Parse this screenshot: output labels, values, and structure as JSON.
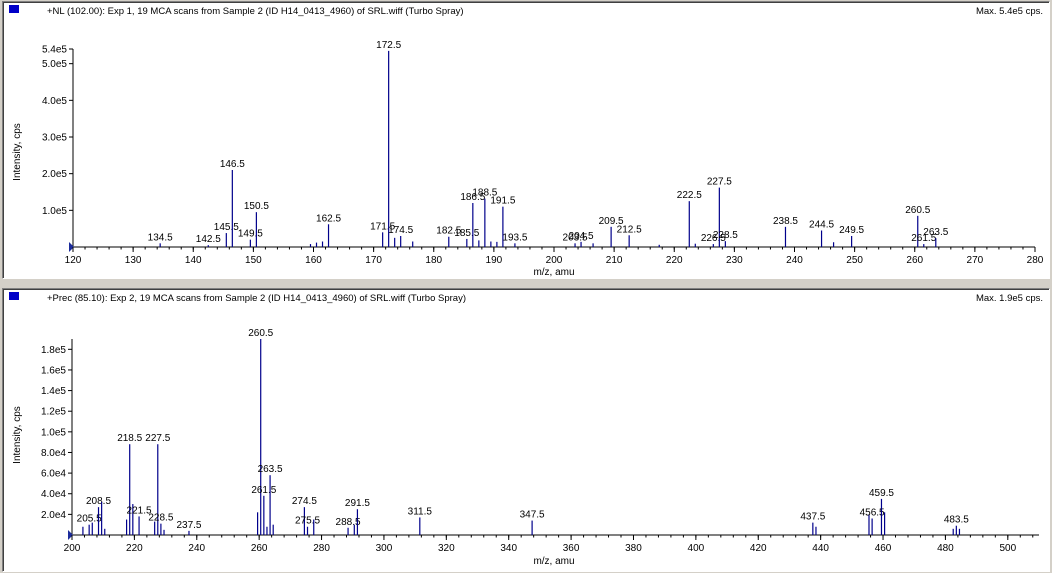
{
  "colors": {
    "peak": "#00008b",
    "marker": "#0000c8",
    "origin_marker": "#1c2c9c"
  },
  "panes": [
    {
      "header": {
        "title": "+NL (102.00): Exp 1, 19 MCA scans from Sample 2 (ID H14_0413_4960) of SRL.wiff (Turbo Spray)",
        "max": "Max. 5.4e5 cps."
      }
    },
    {
      "header": {
        "title": "+Prec (85.10): Exp 2, 19 MCA scans from Sample 2 (ID H14_0413_4960) of SRL.wiff (Turbo Spray)",
        "max": "Max. 1.9e5 cps."
      }
    }
  ],
  "chart_data": [
    {
      "type": "bar",
      "xlabel": "m/z, amu",
      "ylabel": "Intensity, cps",
      "xlim": [
        120,
        280
      ],
      "ylim": [
        0,
        540000
      ],
      "x_ticks": [
        "120",
        "130",
        "140",
        "150",
        "160",
        "170",
        "180",
        "190",
        "200",
        "210",
        "220",
        "230",
        "240",
        "250",
        "260",
        "270",
        "280"
      ],
      "y_ticks": [
        {
          "value": 100000,
          "label": "1.0e5"
        },
        {
          "value": 200000,
          "label": "2.0e5"
        },
        {
          "value": 300000,
          "label": "3.0e5"
        },
        {
          "value": 400000,
          "label": "4.0e5"
        },
        {
          "value": 500000,
          "label": "5.0e5"
        },
        {
          "value": 540000,
          "label": "5.4e5"
        }
      ],
      "peaks": [
        {
          "mz": 134.5,
          "i": 10000,
          "label": "134.5"
        },
        {
          "mz": 142.5,
          "i": 5000,
          "label": "142.5"
        },
        {
          "mz": 145.5,
          "i": 38000,
          "label": "145.5"
        },
        {
          "mz": 146.5,
          "i": 210000,
          "label": "146.5"
        },
        {
          "mz": 149.5,
          "i": 20000,
          "label": "149.5"
        },
        {
          "mz": 150.5,
          "i": 95000,
          "label": "150.5"
        },
        {
          "mz": 159.5,
          "i": 8000
        },
        {
          "mz": 160.5,
          "i": 12000
        },
        {
          "mz": 161.5,
          "i": 15000
        },
        {
          "mz": 162.5,
          "i": 62000,
          "label": "162.5"
        },
        {
          "mz": 171.5,
          "i": 40000,
          "label": "171.5"
        },
        {
          "mz": 172.5,
          "i": 535000,
          "label": "172.5"
        },
        {
          "mz": 173.5,
          "i": 25000
        },
        {
          "mz": 174.5,
          "i": 30000,
          "label": "174.5"
        },
        {
          "mz": 176.5,
          "i": 15000
        },
        {
          "mz": 182.5,
          "i": 28000,
          "label": "182.5"
        },
        {
          "mz": 185.5,
          "i": 22000,
          "label": "185.5"
        },
        {
          "mz": 186.5,
          "i": 120000,
          "label": "186.5"
        },
        {
          "mz": 187.5,
          "i": 18000
        },
        {
          "mz": 188.5,
          "i": 132000,
          "label": "188.5"
        },
        {
          "mz": 189.5,
          "i": 15000
        },
        {
          "mz": 190.5,
          "i": 14000
        },
        {
          "mz": 191.5,
          "i": 110000,
          "label": "191.5"
        },
        {
          "mz": 193.5,
          "i": 10000,
          "label": "193.5"
        },
        {
          "mz": 203.5,
          "i": 10000,
          "label": "203.5"
        },
        {
          "mz": 204.5,
          "i": 14000,
          "label": "204.5"
        },
        {
          "mz": 206.5,
          "i": 10000
        },
        {
          "mz": 209.5,
          "i": 55000,
          "label": "209.5"
        },
        {
          "mz": 212.5,
          "i": 32000,
          "label": "212.5"
        },
        {
          "mz": 217.5,
          "i": 6000
        },
        {
          "mz": 222.5,
          "i": 125000,
          "label": "222.5"
        },
        {
          "mz": 223.5,
          "i": 9000
        },
        {
          "mz": 226.5,
          "i": 8000,
          "label": "226.5"
        },
        {
          "mz": 227.5,
          "i": 162000,
          "label": "227.5"
        },
        {
          "mz": 228.5,
          "i": 16000,
          "label": "228.5"
        },
        {
          "mz": 238.5,
          "i": 55000,
          "label": "238.5"
        },
        {
          "mz": 244.5,
          "i": 45000,
          "label": "244.5"
        },
        {
          "mz": 246.5,
          "i": 13000
        },
        {
          "mz": 249.5,
          "i": 30000,
          "label": "249.5"
        },
        {
          "mz": 260.5,
          "i": 85000,
          "label": "260.5"
        },
        {
          "mz": 261.5,
          "i": 8000,
          "label": "261.5"
        },
        {
          "mz": 263.5,
          "i": 24000,
          "label": "263.5"
        }
      ]
    },
    {
      "type": "bar",
      "xlabel": "m/z, amu",
      "ylabel": "Intensity, cps",
      "xlim": [
        200,
        510
      ],
      "ylim": [
        0,
        190000
      ],
      "x_ticks": [
        "200",
        "220",
        "240",
        "260",
        "280",
        "300",
        "320",
        "340",
        "360",
        "380",
        "400",
        "420",
        "440",
        "460",
        "480",
        "500"
      ],
      "y_ticks": [
        {
          "value": 20000,
          "label": "2.0e4"
        },
        {
          "value": 40000,
          "label": "4.0e4"
        },
        {
          "value": 60000,
          "label": "6.0e4"
        },
        {
          "value": 80000,
          "label": "8.0e4"
        },
        {
          "value": 100000,
          "label": "1.0e5"
        },
        {
          "value": 120000,
          "label": "1.2e5"
        },
        {
          "value": 140000,
          "label": "1.4e5"
        },
        {
          "value": 160000,
          "label": "1.6e5"
        },
        {
          "value": 180000,
          "label": "1.8e5"
        }
      ],
      "peaks": [
        {
          "mz": 203.5,
          "i": 8000
        },
        {
          "mz": 205.5,
          "i": 10000,
          "label": "205.5"
        },
        {
          "mz": 206.5,
          "i": 12000
        },
        {
          "mz": 208.5,
          "i": 27000,
          "label": "208.5"
        },
        {
          "mz": 209.5,
          "i": 32000
        },
        {
          "mz": 210.5,
          "i": 6000
        },
        {
          "mz": 217.5,
          "i": 15000
        },
        {
          "mz": 218.5,
          "i": 88000,
          "label": "218.5"
        },
        {
          "mz": 219.5,
          "i": 30000
        },
        {
          "mz": 221.5,
          "i": 18000,
          "label": "221.5"
        },
        {
          "mz": 226.5,
          "i": 13000
        },
        {
          "mz": 227.5,
          "i": 88000,
          "label": "227.5"
        },
        {
          "mz": 228.5,
          "i": 11000,
          "label": "228.5"
        },
        {
          "mz": 229.5,
          "i": 5000
        },
        {
          "mz": 237.5,
          "i": 4000,
          "label": "237.5"
        },
        {
          "mz": 259.5,
          "i": 22000
        },
        {
          "mz": 260.5,
          "i": 190000,
          "label": "260.5"
        },
        {
          "mz": 261.5,
          "i": 38000,
          "label": "261.5"
        },
        {
          "mz": 262.5,
          "i": 8000
        },
        {
          "mz": 263.5,
          "i": 58000,
          "label": "263.5"
        },
        {
          "mz": 264.5,
          "i": 10000
        },
        {
          "mz": 274.5,
          "i": 27000,
          "label": "274.5"
        },
        {
          "mz": 275.5,
          "i": 8000,
          "label": "275.5"
        },
        {
          "mz": 277.5,
          "i": 15000
        },
        {
          "mz": 288.5,
          "i": 7000,
          "label": "288.5"
        },
        {
          "mz": 290.5,
          "i": 10000
        },
        {
          "mz": 291.5,
          "i": 25000,
          "label": "291.5"
        },
        {
          "mz": 311.5,
          "i": 17000,
          "label": "311.5"
        },
        {
          "mz": 347.5,
          "i": 14000,
          "label": "347.5"
        },
        {
          "mz": 437.5,
          "i": 12000,
          "label": "437.5"
        },
        {
          "mz": 438.5,
          "i": 8000
        },
        {
          "mz": 455.5,
          "i": 20000
        },
        {
          "mz": 456.5,
          "i": 16000,
          "label": "456.5"
        },
        {
          "mz": 459.5,
          "i": 35000,
          "label": "459.5"
        },
        {
          "mz": 460.5,
          "i": 22000
        },
        {
          "mz": 482.5,
          "i": 6000
        },
        {
          "mz": 483.5,
          "i": 9000,
          "label": "483.5"
        },
        {
          "mz": 484.5,
          "i": 6000
        }
      ]
    }
  ]
}
